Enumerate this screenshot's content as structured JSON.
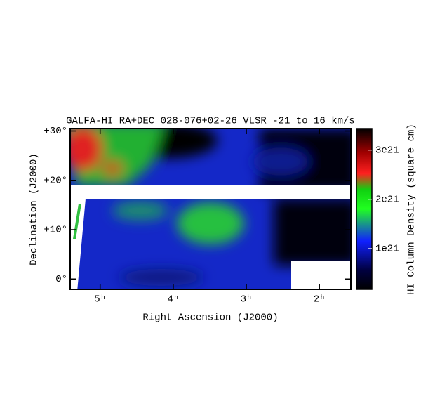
{
  "chart_data": {
    "type": "image",
    "title": "GALFA-HI RA+DEC 028-076+02-26 VLSR -21 to 16 km/s",
    "x_label": "Right Ascension (J2000)",
    "y_label": "Declination (J2000)",
    "xlim": [
      5.41,
      1.57
    ],
    "xticks": [
      {
        "value": 5,
        "label": "5ʰ"
      },
      {
        "value": 4,
        "label": "4ʰ"
      },
      {
        "value": 3,
        "label": "3ʰ"
      },
      {
        "value": 2,
        "label": "2ʰ"
      }
    ],
    "ylim": [
      -2.1,
      30.5
    ],
    "yticks": [
      {
        "value": 0,
        "label": "0°"
      },
      {
        "value": 10,
        "label": "+10°"
      },
      {
        "value": 20,
        "label": "+20°"
      },
      {
        "value": 30,
        "label": "+30°"
      }
    ],
    "colorbar": {
      "label": "HI Column Density (square cm)",
      "lim": [
        1.7e+20,
        3.44e+21
      ],
      "ticks": [
        {
          "value": 1e+21,
          "label": "1e21"
        },
        {
          "value": 2e+21,
          "label": "2e21"
        },
        {
          "value": 3e+21,
          "label": "3e21"
        }
      ]
    }
  }
}
